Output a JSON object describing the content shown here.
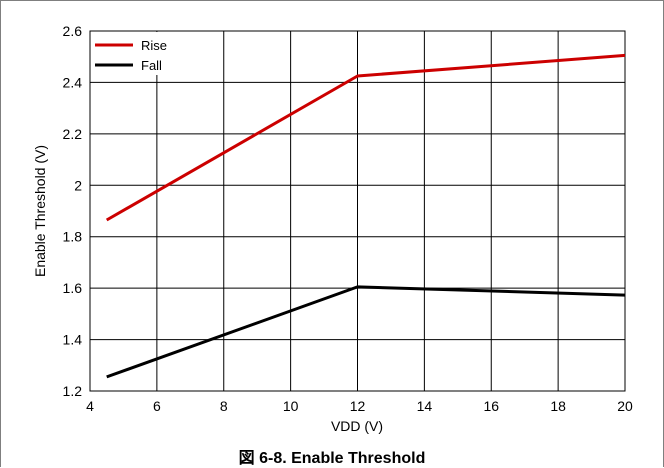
{
  "caption": "図 6-8. Enable Threshold",
  "chart_data": {
    "type": "line",
    "title": "",
    "xlabel": "VDD (V)",
    "ylabel": "Enable Threshold (V)",
    "xlim": [
      4,
      20
    ],
    "ylim": [
      1.2,
      2.6
    ],
    "xticks": [
      4,
      6,
      8,
      10,
      12,
      14,
      16,
      18,
      20
    ],
    "yticks": [
      1.2,
      1.4,
      1.6,
      1.8,
      2,
      2.2,
      2.4,
      2.6
    ],
    "grid": true,
    "legend_position": "top-left",
    "series": [
      {
        "name": "Rise",
        "color": "#cc0000",
        "x": [
          4.5,
          12,
          20
        ],
        "y": [
          1.865,
          2.425,
          2.505
        ]
      },
      {
        "name": "Fall",
        "color": "#000000",
        "x": [
          4.5,
          12,
          20
        ],
        "y": [
          1.255,
          1.605,
          1.573
        ]
      }
    ]
  }
}
